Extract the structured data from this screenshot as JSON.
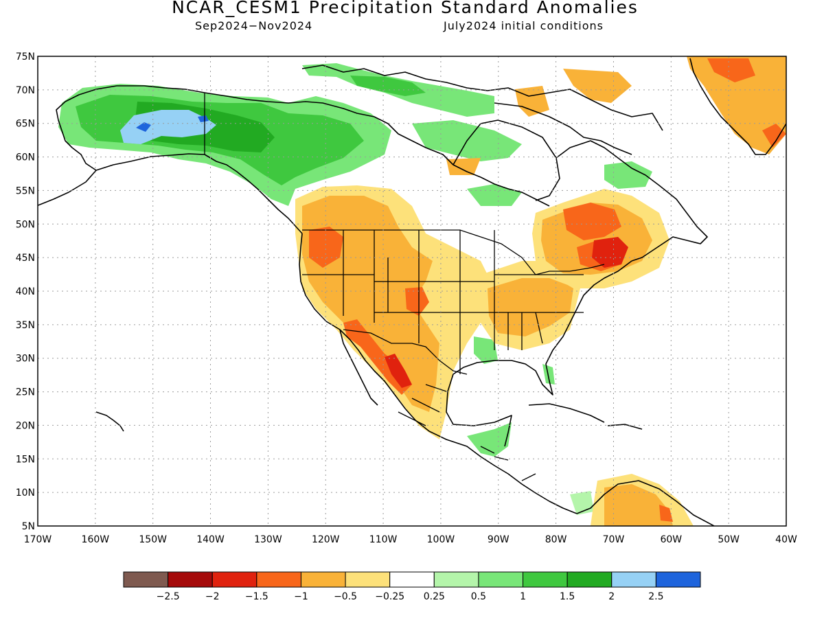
{
  "map": {
    "title": "NCAR_CESM1 Precipitation Standard Anomalies",
    "subtitle_period": "Sep2024−Nov2024",
    "subtitle_init": "July2024 initial conditions",
    "lat_labels": [
      "75N",
      "70N",
      "65N",
      "60N",
      "55N",
      "50N",
      "45N",
      "40N",
      "35N",
      "30N",
      "25N",
      "20N",
      "15N",
      "10N",
      "5N"
    ],
    "lon_labels": [
      "170W",
      "160W",
      "150W",
      "140W",
      "130W",
      "120W",
      "110W",
      "100W",
      "90W",
      "80W",
      "70W",
      "60W",
      "50W",
      "40W"
    ],
    "colorbar": {
      "colors": [
        "#7f5a50",
        "#a50a0a",
        "#e0220e",
        "#f8661a",
        "#f9b238",
        "#fde17a",
        "#ffffff",
        "#b4f5aa",
        "#78e678",
        "#3fc83f",
        "#22aa22",
        "#96d1f5",
        "#1e64dc"
      ],
      "labels": [
        "−2.5",
        "−2",
        "−1.5",
        "−1",
        "−0.5",
        "−0.25",
        "0.25",
        "0.5",
        "1",
        "1.5",
        "2",
        "2.5"
      ]
    },
    "anomaly_regions": [
      {
        "region": "Alaska / Yukon",
        "category": "wet",
        "level": "1 to 2"
      },
      {
        "region": "Interior Alaska",
        "category": "wet",
        "level": "2 to 2.5"
      },
      {
        "region": "US West / Southwest",
        "category": "dry",
        "level": "-0.5 to -1.5"
      },
      {
        "region": "Northern Mexico",
        "category": "dry",
        "level": "-1 to -2"
      },
      {
        "region": "Southeast US",
        "category": "dry",
        "level": "-0.5 to -1"
      },
      {
        "region": "Quebec / New England",
        "category": "dry",
        "level": "-1 to -2.5"
      },
      {
        "region": "Southern Greenland",
        "category": "dry",
        "level": "-0.5 to -1.5"
      },
      {
        "region": "Northern South America",
        "category": "dry",
        "level": "-0.5 to -1"
      },
      {
        "region": "Central America",
        "category": "wet",
        "level": "0.5 to 1"
      }
    ]
  }
}
